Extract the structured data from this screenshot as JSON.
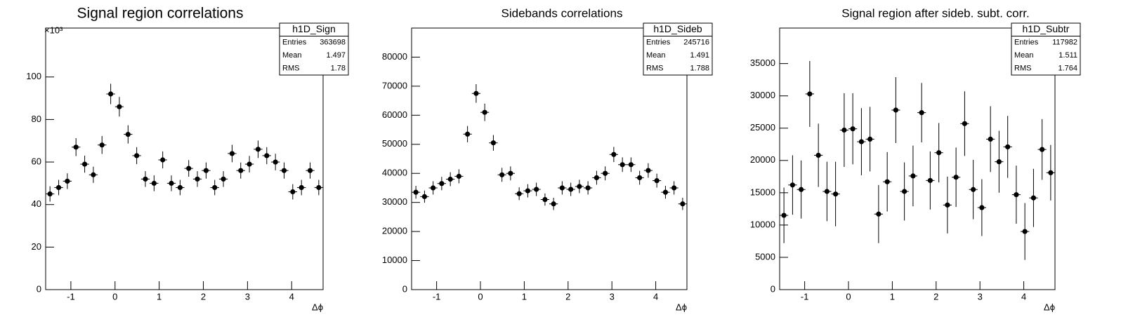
{
  "chart_data": [
    {
      "type": "errorbar",
      "title": "Signal region correlations",
      "x_label": "Δϕ",
      "y_exponent_label": "×10³",
      "x": [
        -1.473,
        -1.276,
        -1.08,
        -0.884,
        -0.687,
        -0.491,
        -0.295,
        -0.098,
        0.098,
        0.295,
        0.491,
        0.687,
        0.884,
        1.08,
        1.276,
        1.473,
        1.669,
        1.865,
        2.062,
        2.258,
        2.454,
        2.651,
        2.847,
        3.043,
        3.24,
        3.436,
        3.633,
        3.829,
        4.025,
        4.222,
        4.418,
        4.614
      ],
      "values": [
        45,
        48,
        51,
        67,
        59,
        54,
        68,
        92,
        86,
        73,
        63,
        52,
        50,
        61,
        50,
        48,
        57,
        52,
        56,
        48,
        52,
        64,
        56,
        59,
        66,
        63,
        60,
        56,
        46,
        48,
        56,
        48
      ],
      "errors": [
        3.6,
        3.6,
        3.7,
        4.2,
        4,
        3.8,
        4.2,
        4.8,
        4.6,
        4.3,
        4,
        3.7,
        3.7,
        4,
        3.7,
        3.6,
        3.9,
        3.7,
        3.8,
        3.6,
        3.7,
        4.1,
        3.8,
        3.9,
        4.1,
        4,
        3.9,
        3.8,
        3.6,
        3.6,
        3.8,
        3.6
      ],
      "color": "#000000",
      "xlim": [
        -1.571,
        4.712
      ],
      "ylim": [
        0,
        123
      ],
      "xticks": [
        -1,
        0,
        1,
        2,
        3,
        4
      ],
      "yticks": [
        0,
        20,
        40,
        60,
        80,
        100
      ],
      "stats": {
        "title": "h1D_Sign",
        "rows": [
          {
            "label": "Entries",
            "value": 363698
          },
          {
            "label": "Mean",
            "value": 1.497
          },
          {
            "label": "RMS",
            "value": 1.78
          }
        ]
      }
    },
    {
      "type": "errorbar",
      "title": "Sidebands correlations",
      "x_label": "Δϕ",
      "x": [
        -1.473,
        -1.276,
        -1.08,
        -0.884,
        -0.687,
        -0.491,
        -0.295,
        -0.098,
        0.098,
        0.295,
        0.491,
        0.687,
        0.884,
        1.08,
        1.276,
        1.473,
        1.669,
        1.865,
        2.062,
        2.258,
        2.454,
        2.651,
        2.847,
        3.043,
        3.24,
        3.436,
        3.633,
        3.829,
        4.025,
        4.222,
        4.418,
        4.614
      ],
      "values": [
        33500,
        32000,
        35000,
        36500,
        38000,
        39000,
        53500,
        67500,
        61000,
        50500,
        39500,
        40000,
        33000,
        34000,
        34500,
        31000,
        29500,
        35000,
        34500,
        35500,
        35000,
        38500,
        40000,
        46500,
        43000,
        43000,
        38500,
        41000,
        37500,
        33500,
        35000,
        29500
      ],
      "errors": [
        2200,
        2100,
        2300,
        2300,
        2400,
        2400,
        2800,
        3200,
        3000,
        2700,
        2400,
        2400,
        2200,
        2300,
        2300,
        2100,
        2100,
        2300,
        2300,
        2300,
        2300,
        2400,
        2400,
        2600,
        2500,
        2500,
        2400,
        2500,
        2400,
        2200,
        2300,
        2100
      ],
      "color": "#000000",
      "xlim": [
        -1.571,
        4.712
      ],
      "ylim": [
        0,
        90000
      ],
      "xticks": [
        -1,
        0,
        1,
        2,
        3,
        4
      ],
      "yticks": [
        0,
        10000,
        20000,
        30000,
        40000,
        50000,
        60000,
        70000,
        80000
      ],
      "stats": {
        "title": "h1D_Sideb",
        "rows": [
          {
            "label": "Entries",
            "value": 245716
          },
          {
            "label": "Mean",
            "value": 1.491
          },
          {
            "label": "RMS",
            "value": 1.788
          }
        ]
      }
    },
    {
      "type": "errorbar",
      "title": "Signal region after sideb. subt. corr.",
      "x_label": "Δϕ",
      "x": [
        -1.473,
        -1.276,
        -1.08,
        -0.884,
        -0.687,
        -0.491,
        -0.295,
        -0.098,
        0.098,
        0.295,
        0.491,
        0.687,
        0.884,
        1.08,
        1.276,
        1.473,
        1.669,
        1.865,
        2.062,
        2.258,
        2.454,
        2.651,
        2.847,
        3.043,
        3.24,
        3.436,
        3.633,
        3.829,
        4.025,
        4.222,
        4.418,
        4.614
      ],
      "values": [
        11500,
        16200,
        15500,
        30300,
        20800,
        15200,
        14800,
        24700,
        24900,
        22900,
        23300,
        11700,
        16700,
        27800,
        15200,
        17600,
        27400,
        16900,
        21200,
        13100,
        17400,
        25700,
        15500,
        12700,
        23300,
        19800,
        22100,
        14700,
        9000,
        14200,
        21700,
        18100
      ],
      "errors": [
        4300,
        4600,
        4500,
        5100,
        4900,
        4600,
        5000,
        5700,
        5500,
        5200,
        5000,
        4500,
        4600,
        5100,
        4500,
        4700,
        4600,
        4500,
        4600,
        4400,
        4600,
        5000,
        4600,
        4400,
        5100,
        4800,
        4800,
        4500,
        4400,
        4500,
        4700,
        4300
      ],
      "color": "#000000",
      "xlim": [
        -1.571,
        4.712
      ],
      "ylim": [
        0,
        40500
      ],
      "xticks": [
        -1,
        0,
        1,
        2,
        3,
        4
      ],
      "yticks": [
        0,
        5000,
        10000,
        15000,
        20000,
        25000,
        30000,
        35000
      ],
      "stats": {
        "title": "h1D_Subtr",
        "rows": [
          {
            "label": "Entries",
            "value": 117982
          },
          {
            "label": "Mean",
            "value": 1.511
          },
          {
            "label": "RMS",
            "value": 1.764
          }
        ]
      }
    }
  ]
}
